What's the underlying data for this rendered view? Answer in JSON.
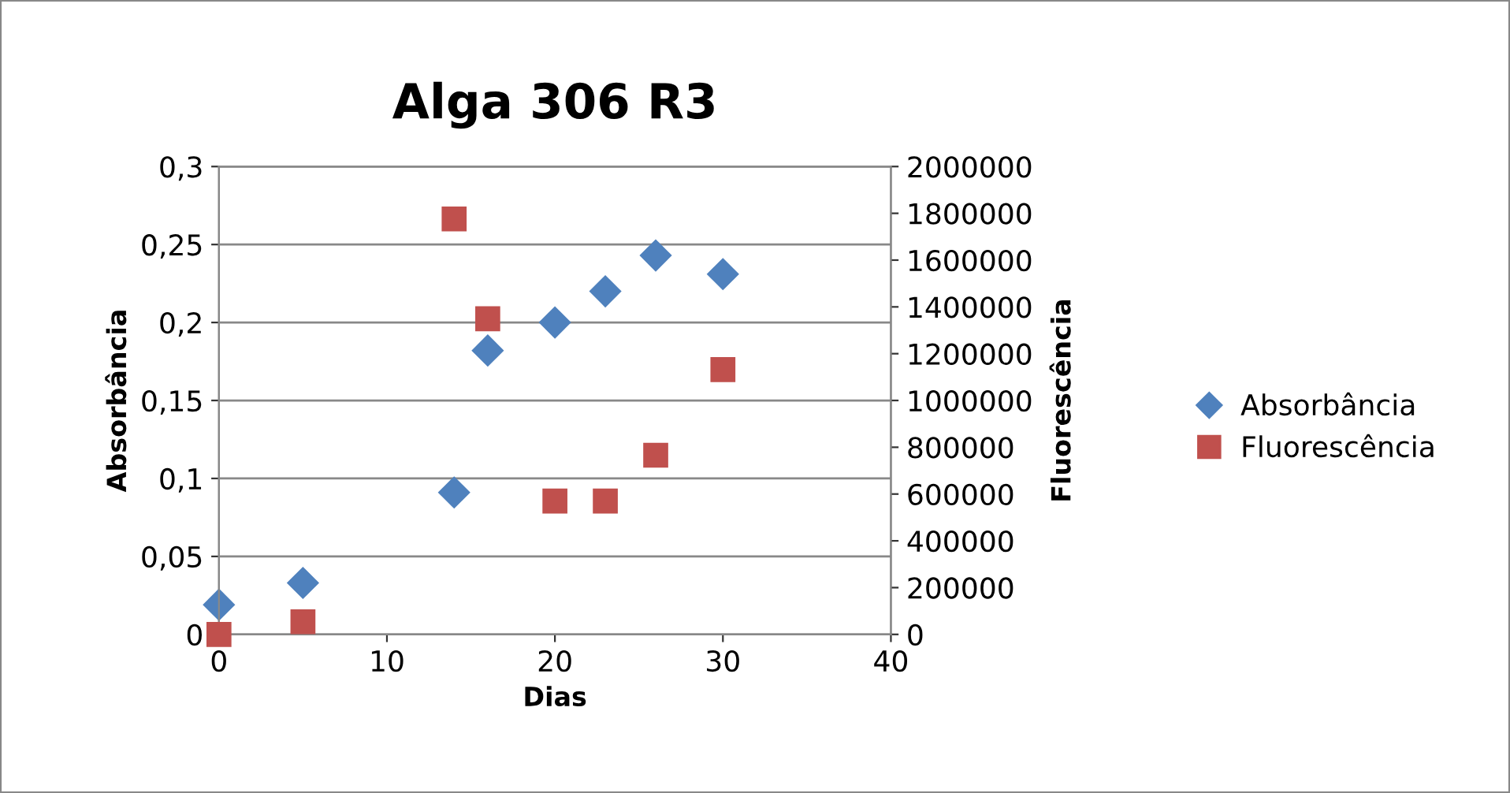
{
  "chart_data": {
    "type": "scatter",
    "title": "Alga 306 R3",
    "xlabel": "Dias",
    "ylabel": "Absorbância",
    "y2label": "Fluorescência",
    "x": [
      0,
      5,
      14,
      16,
      20,
      23,
      26,
      30
    ],
    "series": [
      {
        "name": "Absorbância",
        "color": "#4f81bd",
        "marker": "diamond",
        "values": [
          0.019,
          0.033,
          0.091,
          0.182,
          0.2,
          0.22,
          0.243,
          0.231
        ]
      },
      {
        "name": "Fluorescência",
        "color": "#c0504d",
        "marker": "square",
        "axis": "y2",
        "values": [
          0,
          54000,
          1776000,
          1349000,
          570000,
          570000,
          766000,
          1132000
        ]
      }
    ],
    "xlim": [
      0,
      40
    ],
    "xticks": [
      0,
      10,
      20,
      30,
      40
    ],
    "ylim": [
      0,
      0.3
    ],
    "yticks": [
      {
        "value": 0,
        "label": "0"
      },
      {
        "value": 0.05,
        "label": "0,05"
      },
      {
        "value": 0.1,
        "label": "0,1"
      },
      {
        "value": 0.15,
        "label": "0,15"
      },
      {
        "value": 0.2,
        "label": "0,2"
      },
      {
        "value": 0.25,
        "label": "0,25"
      },
      {
        "value": 0.3,
        "label": "0,3"
      }
    ],
    "y2lim": [
      0,
      2000000
    ],
    "y2ticks": [
      0,
      200000,
      400000,
      600000,
      800000,
      1000000,
      1200000,
      1400000,
      1600000,
      1800000,
      2000000
    ],
    "grid": "y",
    "legend": "right"
  }
}
